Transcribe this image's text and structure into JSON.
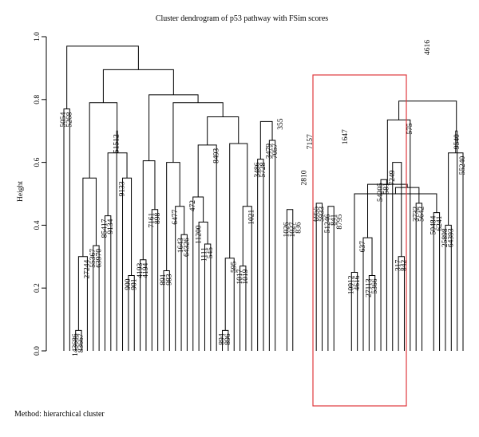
{
  "chart_data": {
    "type": "dendrogram",
    "title": "Cluster dendrogram of p53 pathway with FSim scores",
    "ylabel": "Height",
    "ylim": [
      0,
      1
    ],
    "yticks": [
      "0.0",
      "0.2",
      "0.4",
      "0.6",
      "0.8",
      "1.0"
    ],
    "highlight_box": {
      "color": "#e0393e"
    },
    "leaf_order": [
      "5054",
      "5268",
      "143686",
      "83667",
      "27244",
      "55367",
      "63970",
      "85417",
      "9134",
      "51512",
      "9133",
      "900",
      "901",
      "4193",
      "4194",
      "7161",
      "898",
      "891",
      "983",
      "6477",
      "1643",
      "64326",
      "472",
      "11200",
      "1111",
      "545",
      "8493",
      "894",
      "896",
      "595",
      "1017",
      "1019",
      "1021",
      "3486",
      "5728",
      "3479",
      "7057",
      "355",
      "1026",
      "1027",
      "836",
      "2810",
      "7157",
      "6955",
      "5933",
      "51246",
      "841",
      "8795",
      "1647",
      "10912",
      "4616",
      "637",
      "27113",
      "5366",
      "54205",
      "581",
      "7249",
      "317",
      "842",
      "575",
      "3732",
      "5642",
      "4616",
      "50484",
      "6241",
      "25898",
      "64393",
      "9540",
      "55240"
    ],
    "merges": [
      {
        "left": "5054",
        "right": "5268",
        "height": 0.77
      },
      {
        "left": "143686",
        "right": "83667",
        "height": 0.065
      },
      {
        "left": "27244",
        "right": [
          "143686",
          "83667"
        ],
        "height": 0.3
      },
      {
        "left": "55367",
        "right": "63970",
        "height": 0.335
      },
      {
        "left": [
          "27244",
          "143686",
          "83667"
        ],
        "right": [
          "55367",
          "63970"
        ],
        "height": 0.55
      },
      {
        "left": "85417",
        "right": "9134",
        "height": 0.43
      },
      {
        "left": "9133",
        "right": [
          "900",
          "901"
        ],
        "height": 0.55
      },
      {
        "left": "900",
        "right": "901",
        "height": 0.24
      },
      {
        "left": [
          "85417",
          "9134"
        ],
        "right": [
          "9133",
          "900",
          "901"
        ],
        "height": 0.63
      },
      {
        "left": "51512",
        "right": [
          "85417",
          "9134",
          "9133",
          "900",
          "901"
        ],
        "height": 0.7
      },
      {
        "left": [
          "27244",
          "143686",
          "83667",
          "55367",
          "63970"
        ],
        "right": [
          "51512",
          "85417",
          "9134",
          "9133",
          "900",
          "901"
        ],
        "height": 0.79
      },
      {
        "left": "4193",
        "right": "4194",
        "height": 0.29
      },
      {
        "left": "7161",
        "right": "898",
        "height": 0.45
      },
      {
        "left": [
          "4193",
          "4194"
        ],
        "right": [
          "7161",
          "898"
        ],
        "height": 0.605
      },
      {
        "left": "891",
        "right": "983",
        "height": 0.255
      },
      {
        "left": "1643",
        "right": "64326",
        "height": 0.37
      },
      {
        "left": "6477",
        "right": [
          "1643",
          "64326"
        ],
        "height": 0.46
      },
      {
        "left": [
          "891",
          "983"
        ],
        "right": [
          "6477",
          "1643",
          "64326"
        ],
        "height": 0.6
      },
      {
        "left": "1111",
        "right": "545",
        "height": 0.34
      },
      {
        "left": "11200",
        "right": [
          "1111",
          "545"
        ],
        "height": 0.41
      },
      {
        "left": "472",
        "right": [
          "11200",
          "1111",
          "545"
        ],
        "height": 0.49
      },
      {
        "left": "8493",
        "right": [
          "472",
          "11200",
          "1111",
          "545"
        ],
        "height": 0.655
      },
      {
        "left": "894",
        "right": "896",
        "height": 0.065
      },
      {
        "left": "595",
        "right": [
          "894",
          "896"
        ],
        "height": 0.295
      },
      {
        "left": "1017",
        "right": "1019",
        "height": 0.27
      },
      {
        "left": "1021",
        "right": [
          "1017",
          "1019"
        ],
        "height": 0.46
      },
      {
        "left": [
          "595",
          "894",
          "896"
        ],
        "right": [
          "1021",
          "1017",
          "1019"
        ],
        "height": 0.66
      },
      {
        "left": [
          "8493",
          "472",
          "11200",
          "1111",
          "545"
        ],
        "right": [
          "595",
          "894",
          "896",
          "1021",
          "1017",
          "1019"
        ],
        "height": 0.745
      },
      {
        "left": [
          "891",
          "983",
          "6477",
          "1643",
          "64326"
        ],
        "right": [
          "8493",
          "472",
          "11200",
          "1111",
          "545",
          "595",
          "894",
          "896",
          "1021",
          "1017",
          "1019"
        ],
        "height": 0.79
      },
      {
        "left": [
          "4193",
          "4194",
          "7161",
          "898"
        ],
        "right": [
          "891",
          "983",
          "6477",
          "1643",
          "64326",
          "8493",
          "472",
          "11200",
          "1111",
          "545",
          "595",
          "894",
          "896",
          "1021",
          "1017",
          "1019"
        ],
        "height": 0.815
      },
      {
        "left": [
          "27244",
          "143686",
          "83667",
          "55367",
          "63970",
          "51512",
          "85417",
          "9134",
          "9133",
          "900",
          "901"
        ],
        "right": [
          "4193",
          "4194",
          "7161",
          "898",
          "891",
          "983",
          "6477",
          "1643",
          "64326",
          "8493",
          "472",
          "11200",
          "1111",
          "545",
          "595",
          "894",
          "896",
          "1021",
          "1017",
          "1019"
        ],
        "height": 0.895
      },
      {
        "left": [
          "5054",
          "5268"
        ],
        "right": [
          "27244",
          "143686",
          "83667",
          "55367",
          "63970",
          "51512",
          "85417",
          "9134",
          "9133",
          "900",
          "901",
          "4193",
          "4194",
          "7161",
          "898",
          "891",
          "983",
          "6477",
          "1643",
          "64326",
          "8493",
          "472",
          "11200",
          "1111",
          "545",
          "595",
          "894",
          "896",
          "1021",
          "1017",
          "1019"
        ],
        "height": 0.97
      },
      {
        "left": "3486",
        "right": "5728",
        "height": 0.61
      },
      {
        "left": "3479",
        "right": "7057",
        "height": 0.67
      },
      {
        "left": [
          "3486",
          "5728"
        ],
        "right": [
          "3479",
          "7057"
        ],
        "height": 0.73
      },
      {
        "left": "1026",
        "right": "1027",
        "height": 0.45
      },
      {
        "left": [
          "1026",
          "1027"
        ],
        "right": "836",
        "height": 0.42
      },
      {
        "left": "2810",
        "right": [
          "1026",
          "1027",
          "836"
        ],
        "height": 0.585
      },
      {
        "left": "7157",
        "right": [
          "2810",
          "1026",
          "1027",
          "836"
        ],
        "height": 0.7
      },
      {
        "left": "355",
        "right": [
          "7157",
          "2810",
          "1026",
          "1027",
          "836"
        ],
        "height": 0.75
      },
      {
        "left": [
          "3486",
          "5728",
          "3479",
          "7057"
        ],
        "right": [
          "355",
          "7157",
          "2810",
          "1026",
          "1027",
          "836"
        ],
        "height": 0.84
      },
      {
        "left": "51246",
        "right": "841",
        "height": 0.46
      },
      {
        "left": "8795",
        "right": [
          "51246",
          "841"
        ],
        "height": 0.445
      },
      {
        "left": "6955",
        "right": "5933",
        "height": 0.47
      },
      {
        "left": [
          "6955",
          "5933"
        ],
        "right": [
          "51246",
          "841",
          "8795"
        ],
        "height": 0.48
      },
      {
        "left": [
          "6955",
          "5933",
          "51246",
          "841",
          "8795"
        ],
        "right": "1647",
        "height": 0.715
      },
      {
        "left": "10912",
        "right": "4616",
        "height": 0.25
      },
      {
        "left": "27113",
        "right": "5366",
        "height": 0.24
      },
      {
        "left": "637",
        "right": [
          "27113",
          "5366"
        ],
        "height": 0.36
      },
      {
        "left": [
          "10912",
          "4616"
        ],
        "right": [
          "637",
          "27113",
          "5366"
        ],
        "height": 0.53
      },
      {
        "left": "54205",
        "right": "581",
        "height": 0.545
      },
      {
        "left": "317",
        "right": "842",
        "height": 0.3
      },
      {
        "left": "7249",
        "right": [
          "317",
          "842"
        ],
        "height": 0.6
      },
      {
        "left": [
          "54205",
          "581"
        ],
        "right": [
          "7249",
          "317",
          "842"
        ],
        "height": 0.585
      },
      {
        "left": [
          "10912",
          "4616",
          "637",
          "27113",
          "5366"
        ],
        "right": [
          "54205",
          "581",
          "7249",
          "317",
          "842"
        ],
        "height": 0.745
      },
      {
        "left": [
          "6955",
          "5933",
          "51246",
          "841",
          "8795",
          "1647"
        ],
        "right": [
          "10912",
          "4616",
          "637",
          "27113",
          "5366",
          "54205",
          "581",
          "7249",
          "317",
          "842"
        ],
        "height": 0.82
      },
      {
        "left": [
          "3486",
          "5728",
          "3479",
          "7057",
          "355",
          "7157",
          "2810",
          "1026",
          "1027",
          "836"
        ],
        "right": [
          "6955",
          "5933",
          "51246",
          "841",
          "8795",
          "1647",
          "10912",
          "4616",
          "637",
          "27113",
          "5366",
          "54205",
          "581",
          "7249",
          "317",
          "842"
        ],
        "height": 0.89
      },
      {
        "left": "3732",
        "right": "5642",
        "height": 0.47
      },
      {
        "left": "50484",
        "right": "6241",
        "height": 0.44
      },
      {
        "left": "4616",
        "right": [
          "50484",
          "6241"
        ],
        "height": 0.5
      },
      {
        "left": [
          "3732",
          "5642"
        ],
        "right": [
          "4616",
          "50484",
          "6241"
        ],
        "height": 0.52
      },
      {
        "left": "575",
        "right": [
          "3732",
          "5642",
          "4616",
          "50484",
          "6241"
        ],
        "height": 0.735
      },
      {
        "left": "25898",
        "right": "64393",
        "height": 0.4
      },
      {
        "left": "55240",
        "right": [
          "25898",
          "64393"
        ],
        "height": 0.63
      },
      {
        "left": "9540",
        "right": [
          "55240",
          "25898",
          "64393"
        ],
        "height": 0.7
      },
      {
        "left": [
          "575",
          "3732",
          "5642",
          "4616",
          "50484",
          "6241"
        ],
        "right": [
          "9540",
          "55240",
          "25898",
          "64393"
        ],
        "height": 0.795
      },
      {
        "left": [
          "575",
          "3732",
          "5642",
          "4616",
          "50484",
          "6241",
          "9540",
          "55240",
          "25898",
          "64393"
        ],
        "right": [
          "3486",
          "5728",
          "3479",
          "7057",
          "355",
          "7157",
          "2810",
          "1026",
          "1027",
          "836",
          "6955",
          "5933",
          "51246",
          "841",
          "8795",
          "1647",
          "10912",
          "4616",
          "637",
          "27113",
          "5366",
          "54205",
          "581",
          "7249",
          "317",
          "842"
        ],
        "height": 0.95
      },
      {
        "left": [
          "5054",
          "5268",
          "27244",
          "143686",
          "83667",
          "55367",
          "63970",
          "51512",
          "85417",
          "9134",
          "9133",
          "900",
          "901",
          "4193",
          "4194",
          "7161",
          "898",
          "891",
          "983",
          "6477",
          "1643",
          "64326",
          "8493",
          "472",
          "11200",
          "1111",
          "545",
          "595",
          "894",
          "896",
          "1021",
          "1017",
          "1019"
        ],
        "right": [
          "3486",
          "5728",
          "3479",
          "7057",
          "355",
          "7157",
          "2810",
          "1026",
          "1027",
          "836",
          "6955",
          "5933",
          "51246",
          "841",
          "8795",
          "1647",
          "10912",
          "4616",
          "637",
          "27113",
          "5366",
          "54205",
          "581",
          "7249",
          "317",
          "842",
          "575",
          "3732",
          "5642",
          "4616",
          "50484",
          "6241",
          "9540",
          "55240",
          "25898",
          "64393"
        ],
        "height": 1.0
      }
    ]
  },
  "footer": "Method: hierarchical cluster"
}
